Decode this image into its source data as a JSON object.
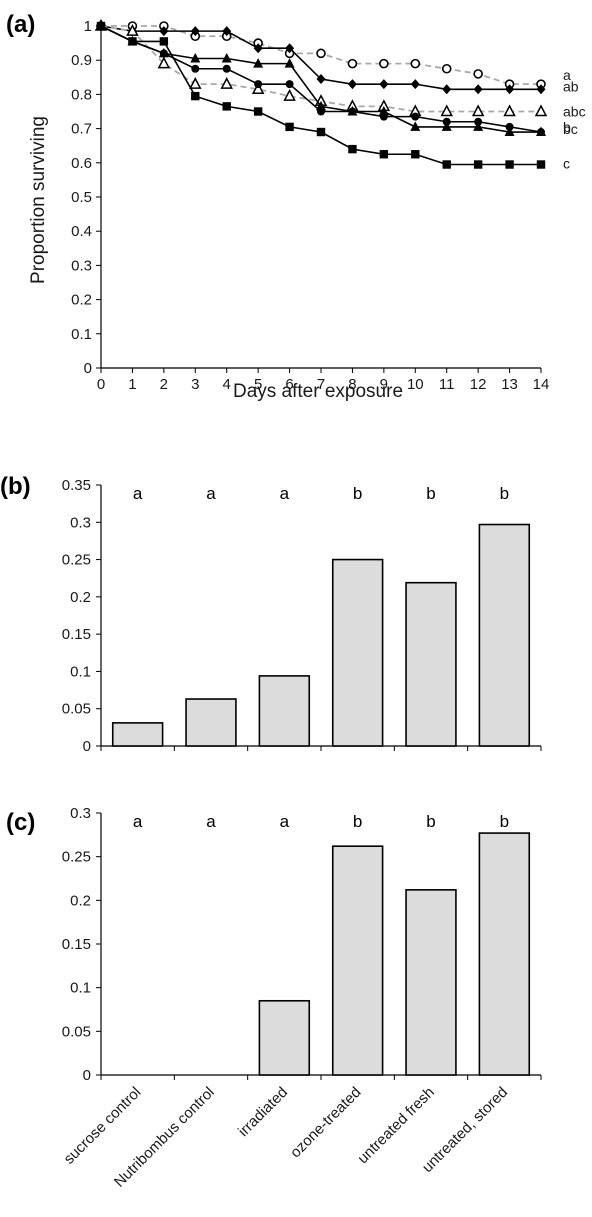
{
  "figure": {
    "panels": [
      {
        "id": "a",
        "label": "(a)",
        "type": "line",
        "ylabel": "Proportion surviving",
        "xlabel": "Days after exposure",
        "ylim": [
          0,
          1
        ],
        "yticks": [
          "0",
          "0.1",
          "0.2",
          "0.3",
          "0.4",
          "0.5",
          "0.6",
          "0.7",
          "0.8",
          "0.9",
          "1"
        ],
        "xlim": [
          0,
          14
        ],
        "xticks": [
          "0",
          "1",
          "2",
          "3",
          "4",
          "5",
          "6",
          "7",
          "8",
          "9",
          "10",
          "11",
          "12",
          "13",
          "14"
        ]
      },
      {
        "id": "b",
        "label": "(b)",
        "type": "bar",
        "ylim": [
          0,
          0.35
        ],
        "yticks": [
          "0",
          "0.05",
          "0.1",
          "0.15",
          "0.2",
          "0.25",
          "0.3",
          "0.35"
        ]
      },
      {
        "id": "c",
        "label": "(c)",
        "type": "bar",
        "ylim": [
          0,
          0.3
        ],
        "yticks": [
          "0",
          "0.05",
          "0.1",
          "0.15",
          "0.2",
          "0.25",
          "0.3"
        ]
      }
    ]
  },
  "chart_data": [
    {
      "type": "line",
      "xlabel": "Days after exposure",
      "ylabel": "Proportion surviving",
      "xlim": [
        0,
        14
      ],
      "ylim": [
        0,
        1
      ],
      "x": [
        0,
        1,
        2,
        3,
        4,
        5,
        6,
        7,
        8,
        9,
        10,
        11,
        12,
        13,
        14
      ],
      "series": [
        {
          "label": "a",
          "marker": "open-circle",
          "line": "dashed-gray",
          "values": [
            1,
            1,
            1,
            0.97,
            0.97,
            0.95,
            0.92,
            0.92,
            0.89,
            0.89,
            0.89,
            0.875,
            0.86,
            0.83,
            0.83
          ]
        },
        {
          "label": "ab",
          "marker": "diamond",
          "line": "solid-black",
          "values": [
            1,
            0.985,
            0.985,
            0.985,
            0.985,
            0.935,
            0.935,
            0.845,
            0.83,
            0.83,
            0.83,
            0.815,
            0.815,
            0.815,
            0.815
          ]
        },
        {
          "label": "abc",
          "marker": "open-triangle",
          "line": "dashed-gray",
          "values": [
            1,
            0.985,
            0.89,
            0.83,
            0.83,
            0.815,
            0.795,
            0.78,
            0.765,
            0.765,
            0.75,
            0.75,
            0.75,
            0.75,
            0.75
          ]
        },
        {
          "label": "b",
          "marker": "circle",
          "line": "solid-black",
          "values": [
            1,
            0.955,
            0.92,
            0.875,
            0.875,
            0.83,
            0.83,
            0.75,
            0.75,
            0.735,
            0.735,
            0.72,
            0.72,
            0.705,
            0.69
          ]
        },
        {
          "label": "bc",
          "marker": "triangle",
          "line": "solid-black",
          "values": [
            1,
            0.955,
            0.92,
            0.905,
            0.905,
            0.89,
            0.89,
            0.765,
            0.75,
            0.75,
            0.705,
            0.705,
            0.705,
            0.69,
            0.69
          ]
        },
        {
          "label": "c",
          "marker": "square",
          "line": "solid-black",
          "values": [
            1,
            0.955,
            0.955,
            0.795,
            0.765,
            0.75,
            0.705,
            0.69,
            0.64,
            0.625,
            0.625,
            0.595,
            0.595,
            0.595,
            0.595
          ]
        }
      ]
    },
    {
      "type": "bar",
      "categories": [
        "sucrose control",
        "Nutribombus control",
        "irradiated",
        "ozone-treated",
        "untreated fresh",
        "untreated, stored"
      ],
      "values": [
        0.031,
        0.063,
        0.094,
        0.25,
        0.219,
        0.297
      ],
      "significance": [
        "a",
        "a",
        "a",
        "b",
        "b",
        "b"
      ],
      "ylim": [
        0,
        0.35
      ]
    },
    {
      "type": "bar",
      "categories": [
        "sucrose control",
        "Nutribombus control",
        "irradiated",
        "ozone-treated",
        "untreated fresh",
        "untreated, stored"
      ],
      "values": [
        0,
        0,
        0.085,
        0.262,
        0.212,
        0.277
      ],
      "significance": [
        "a",
        "a",
        "a",
        "b",
        "b",
        "b"
      ],
      "ylim": [
        0,
        0.3
      ]
    }
  ],
  "style": {
    "bar_fill": "#dcdcdc",
    "bar_stroke": "#000000",
    "dashed_line": "#a8a8a8",
    "solid_line": "#000000"
  }
}
